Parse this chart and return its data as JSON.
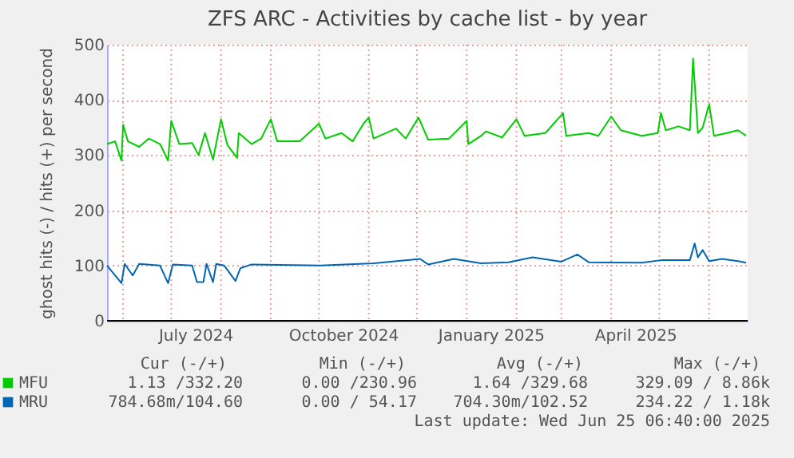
{
  "chart_data": {
    "type": "line",
    "title": "ZFS ARC - Activities by cache list - by year",
    "ylabel": "ghost hits (-) / hits (+) per second",
    "xlim": [
      "2024-05-22",
      "2025-06-25"
    ],
    "xticks": [
      {
        "value": "2024-06-01",
        "label": null
      },
      {
        "value": "2024-07-01",
        "label": null
      },
      {
        "value": "2024-07-16",
        "label": "July 2024"
      },
      {
        "value": "2024-08-01",
        "label": null
      },
      {
        "value": "2024-09-01",
        "label": null
      },
      {
        "value": "2024-10-01",
        "label": null
      },
      {
        "value": "2024-10-16",
        "label": "October 2024"
      },
      {
        "value": "2024-11-01",
        "label": null
      },
      {
        "value": "2024-12-01",
        "label": null
      },
      {
        "value": "2025-01-01",
        "label": null
      },
      {
        "value": "2025-01-16",
        "label": "January 2025"
      },
      {
        "value": "2025-02-01",
        "label": null
      },
      {
        "value": "2025-03-01",
        "label": null
      },
      {
        "value": "2025-04-01",
        "label": null
      },
      {
        "value": "2025-04-16",
        "label": "April 2025"
      },
      {
        "value": "2025-05-01",
        "label": null
      },
      {
        "value": "2025-06-01",
        "label": null
      }
    ],
    "ylim": [
      0,
      500
    ],
    "yticks": [
      0,
      100,
      200,
      300,
      400,
      500
    ],
    "grid": true,
    "legend": "bottom",
    "series": [
      {
        "name": "MFU",
        "color": "#00cc00",
        "x": [
          "2024-05-22",
          "2024-05-27",
          "2024-05-31",
          "2024-06-01",
          "2024-06-04",
          "2024-06-11",
          "2024-06-17",
          "2024-06-24",
          "2024-06-29",
          "2024-07-01",
          "2024-07-06",
          "2024-07-14",
          "2024-07-18",
          "2024-07-22",
          "2024-07-27",
          "2024-08-01",
          "2024-08-05",
          "2024-08-11",
          "2024-08-12",
          "2024-08-20",
          "2024-08-26",
          "2024-09-01",
          "2024-09-05",
          "2024-09-19",
          "2024-10-01",
          "2024-10-05",
          "2024-10-15",
          "2024-10-22",
          "2024-10-29",
          "2024-11-01",
          "2024-11-04",
          "2024-11-18",
          "2024-11-24",
          "2024-12-02",
          "2024-12-08",
          "2024-12-21",
          "2025-01-01",
          "2025-01-02",
          "2025-01-10",
          "2025-01-13",
          "2025-01-23",
          "2025-02-01",
          "2025-02-06",
          "2025-02-19",
          "2025-03-02",
          "2025-03-04",
          "2025-03-18",
          "2025-03-24",
          "2025-04-01",
          "2025-04-07",
          "2025-04-20",
          "2025-04-30",
          "2025-05-02",
          "2025-05-05",
          "2025-05-13",
          "2025-05-20",
          "2025-05-22",
          "2025-05-25",
          "2025-05-28",
          "2025-06-01",
          "2025-06-04",
          "2025-06-12",
          "2025-06-19",
          "2025-06-24"
        ],
        "values": [
          320,
          325,
          290,
          355,
          325,
          315,
          330,
          320,
          290,
          362,
          320,
          322,
          300,
          340,
          292,
          365,
          318,
          295,
          340,
          320,
          330,
          365,
          325,
          325,
          357,
          330,
          340,
          325,
          358,
          368,
          330,
          348,
          330,
          368,
          328,
          330,
          362,
          320,
          335,
          343,
          332,
          365,
          335,
          340,
          376,
          335,
          340,
          335,
          370,
          345,
          335,
          340,
          376,
          345,
          352,
          345,
          475,
          340,
          350,
          392,
          335,
          340,
          345,
          335
        ]
      },
      {
        "name": "MRU",
        "color": "#0066b3",
        "x": [
          "2024-05-22",
          "2024-05-31",
          "2024-06-02",
          "2024-06-07",
          "2024-06-11",
          "2024-06-24",
          "2024-06-29",
          "2024-07-02",
          "2024-07-14",
          "2024-07-17",
          "2024-07-21",
          "2024-07-23",
          "2024-07-27",
          "2024-07-29",
          "2024-08-03",
          "2024-08-10",
          "2024-08-13",
          "2024-08-20",
          "2024-10-02",
          "2024-11-04",
          "2024-12-03",
          "2024-12-08",
          "2024-12-24",
          "2025-01-10",
          "2025-01-27",
          "2025-02-11",
          "2025-03-01",
          "2025-03-11",
          "2025-03-18",
          "2025-04-20",
          "2025-05-03",
          "2025-05-20",
          "2025-05-23",
          "2025-05-25",
          "2025-05-28",
          "2025-06-01",
          "2025-06-09",
          "2025-06-19",
          "2025-06-24"
        ],
        "values": [
          100,
          68,
          103,
          82,
          103,
          100,
          68,
          102,
          100,
          70,
          70,
          103,
          70,
          103,
          100,
          72,
          95,
          102,
          100,
          104,
          112,
          102,
          112,
          104,
          106,
          115,
          107,
          120,
          106,
          105,
          110,
          110,
          140,
          115,
          128,
          108,
          112,
          108,
          105
        ]
      }
    ],
    "annotations": [
      "Cur (-/+)",
      "Min (-/+)",
      "Avg (-/+)",
      "Max (-/+)",
      "1.13 /332.20",
      "0.00 /230.96",
      "1.64 /329.68",
      "329.09 / 8.86k",
      "784.68m/104.60",
      "0.00 / 54.17",
      "704.30m/102.52",
      "234.22 / 1.18k",
      "Last update: Wed Jun 25 06:40:00 2025"
    ]
  }
}
